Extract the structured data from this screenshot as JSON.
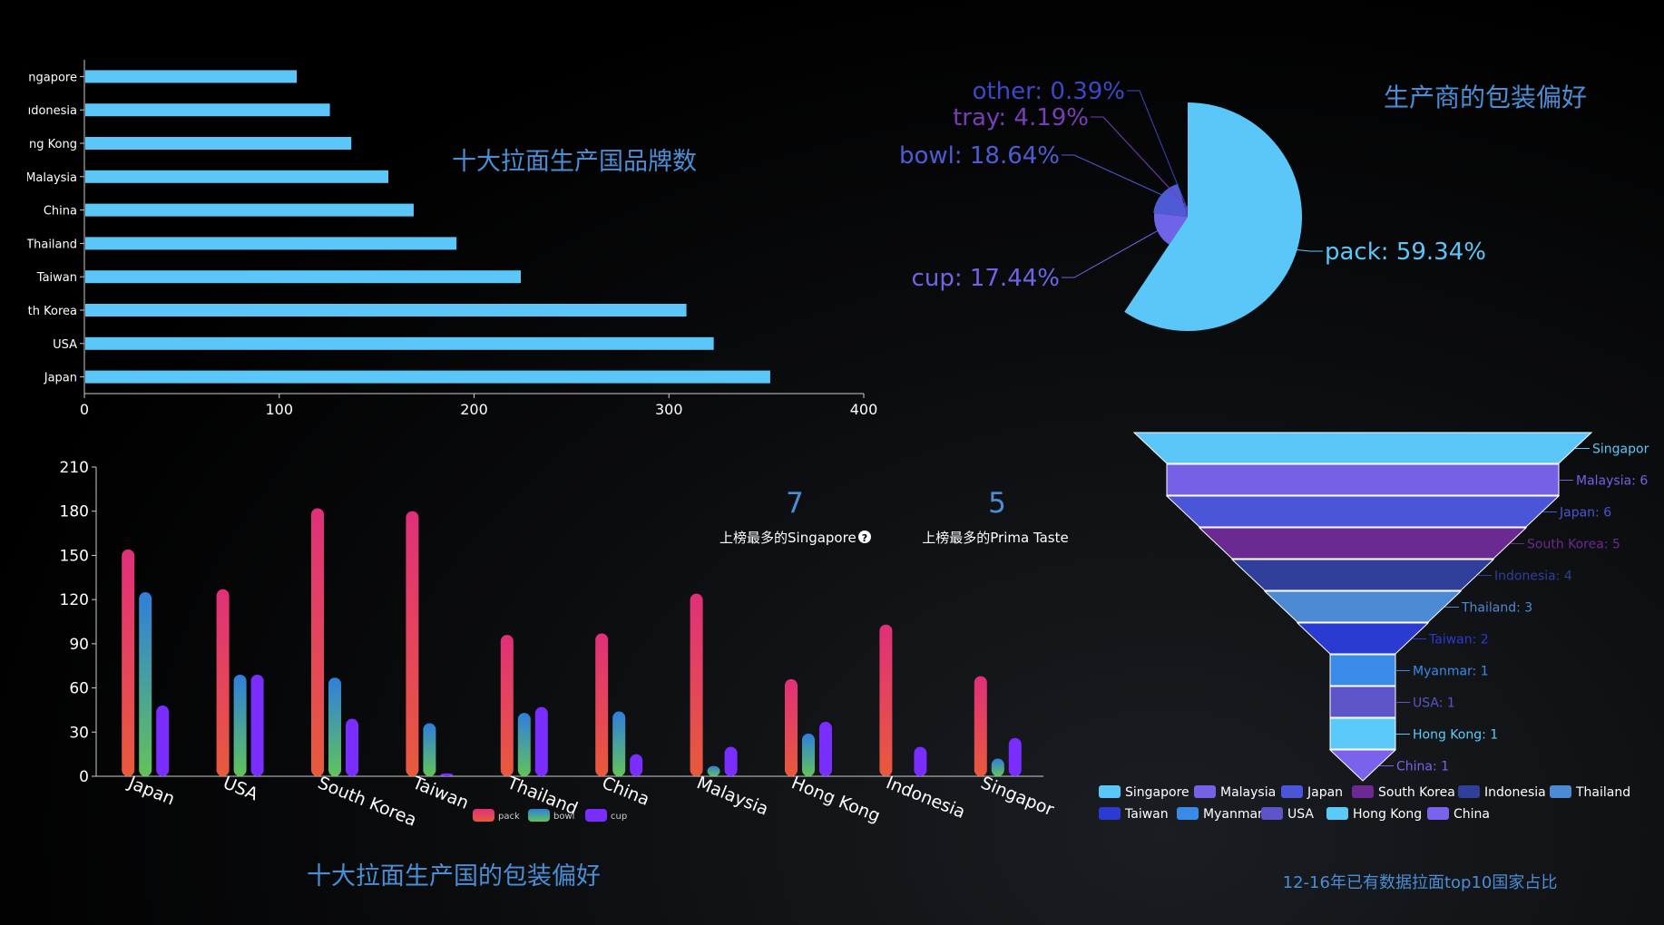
{
  "colors": {
    "bar_blue": "#5bc7f8",
    "title_blue": "#4a8fd6",
    "pie_cup": "#6e64e8",
    "pie_bowl": "#4f5bd5",
    "pie_tray": "#7a3db8",
    "pie_other": "#3b48c7",
    "pack_top": "#e0307a",
    "pack_bottom": "#e85a3c",
    "bowl_top": "#2f7fdc",
    "bowl_bottom": "#62c25a",
    "cup": "#7a2dff"
  },
  "brand_chart": {
    "title": "十大拉面生产国品牌数",
    "chart_data": {
      "type": "bar",
      "orientation": "horizontal",
      "categories": [
        "Japan",
        "USA",
        "South Korea",
        "Taiwan",
        "Thailand",
        "China",
        "Malaysia",
        "Hong Kong",
        "Indonesia",
        "Singapore"
      ],
      "tick_labels": [
        "Japan",
        "USA",
        "th Korea",
        "Taiwan",
        "Thailand",
        "China",
        "Malaysia",
        "ng Kong",
        "ıdonesia",
        "ingapore"
      ],
      "values": [
        352,
        323,
        309,
        224,
        191,
        169,
        156,
        137,
        126,
        109
      ],
      "xlim": [
        0,
        400
      ],
      "xticks": [
        0,
        100,
        200,
        300,
        400
      ]
    }
  },
  "pie_chart": {
    "title": "生产商的包装偏好",
    "chart_data": {
      "type": "pie",
      "style": "rose",
      "slices": [
        {
          "name": "pack",
          "value": 59.34,
          "label": "pack: 59.34%"
        },
        {
          "name": "cup",
          "value": 17.44,
          "label": "cup: 17.44%"
        },
        {
          "name": "bowl",
          "value": 18.64,
          "label": "bowl: 18.64%"
        },
        {
          "name": "tray",
          "value": 4.19,
          "label": "tray: 4.19%"
        },
        {
          "name": "other",
          "value": 0.39,
          "label": "other: 0.39%"
        }
      ]
    }
  },
  "package_chart": {
    "title": "十大拉面生产国的包装偏好",
    "chart_data": {
      "type": "bar",
      "categories": [
        "Japan",
        "USA",
        "South Korea",
        "Taiwan",
        "Thailand",
        "China",
        "Malaysia",
        "Hong Kong",
        "Indonesia",
        "Singapore"
      ],
      "tick_labels": [
        "Japan",
        "USA",
        "South Korea",
        "Taiwan",
        "Thailand",
        "China",
        "Malaysia",
        "Hong Kong",
        "Indonesia",
        "Singapor"
      ],
      "series": [
        {
          "name": "pack",
          "values": [
            154,
            127,
            182,
            180,
            96,
            97,
            124,
            66,
            103,
            68
          ]
        },
        {
          "name": "bowl",
          "values": [
            125,
            69,
            67,
            36,
            43,
            44,
            7,
            29,
            0,
            12
          ]
        },
        {
          "name": "cup",
          "values": [
            48,
            69,
            39,
            2,
            47,
            15,
            20,
            37,
            20,
            26
          ]
        }
      ],
      "ylim": [
        0,
        210
      ],
      "yticks": [
        0,
        30,
        60,
        90,
        120,
        150,
        180,
        210
      ],
      "legend": "bottom-center"
    }
  },
  "stats": [
    {
      "value": "7",
      "label": "上榜最多的Singapore",
      "has_help_icon": true
    },
    {
      "value": "5",
      "label": "上榜最多的Prima Taste",
      "has_help_icon": false
    }
  ],
  "funnel_chart": {
    "title": "12-16年已有数据拉面top10国家占比",
    "chart_data": {
      "type": "funnel",
      "items": [
        {
          "name": "Singapore",
          "value": 7,
          "label": "Singapor",
          "color": "#5bc7f8"
        },
        {
          "name": "Malaysia",
          "value": 6,
          "label": "Malaysia: 6",
          "color": "#7560e6"
        },
        {
          "name": "Japan",
          "value": 6,
          "label": "Japan: 6",
          "color": "#4a55d8"
        },
        {
          "name": "South Korea",
          "value": 5,
          "label": "South Korea: 5",
          "color": "#6b2a92"
        },
        {
          "name": "Indonesia",
          "value": 4,
          "label": "Indonesia: 4",
          "color": "#2f3f9a"
        },
        {
          "name": "Thailand",
          "value": 3,
          "label": "Thailand: 3",
          "color": "#4c8ad4"
        },
        {
          "name": "Taiwan",
          "value": 2,
          "label": "Taiwan: 2",
          "color": "#2b3ad0"
        },
        {
          "name": "Myanmar",
          "value": 1,
          "label": "Myanmar: 1",
          "color": "#3a8ae8"
        },
        {
          "name": "USA",
          "value": 1,
          "label": "USA: 1",
          "color": "#5c54c8"
        },
        {
          "name": "Hong Kong",
          "value": 1,
          "label": "Hong Kong: 1",
          "color": "#5ccaf8"
        },
        {
          "name": "China",
          "value": 1,
          "label": "China: 1",
          "color": "#7a62ec"
        }
      ],
      "legend": "bottom"
    }
  }
}
